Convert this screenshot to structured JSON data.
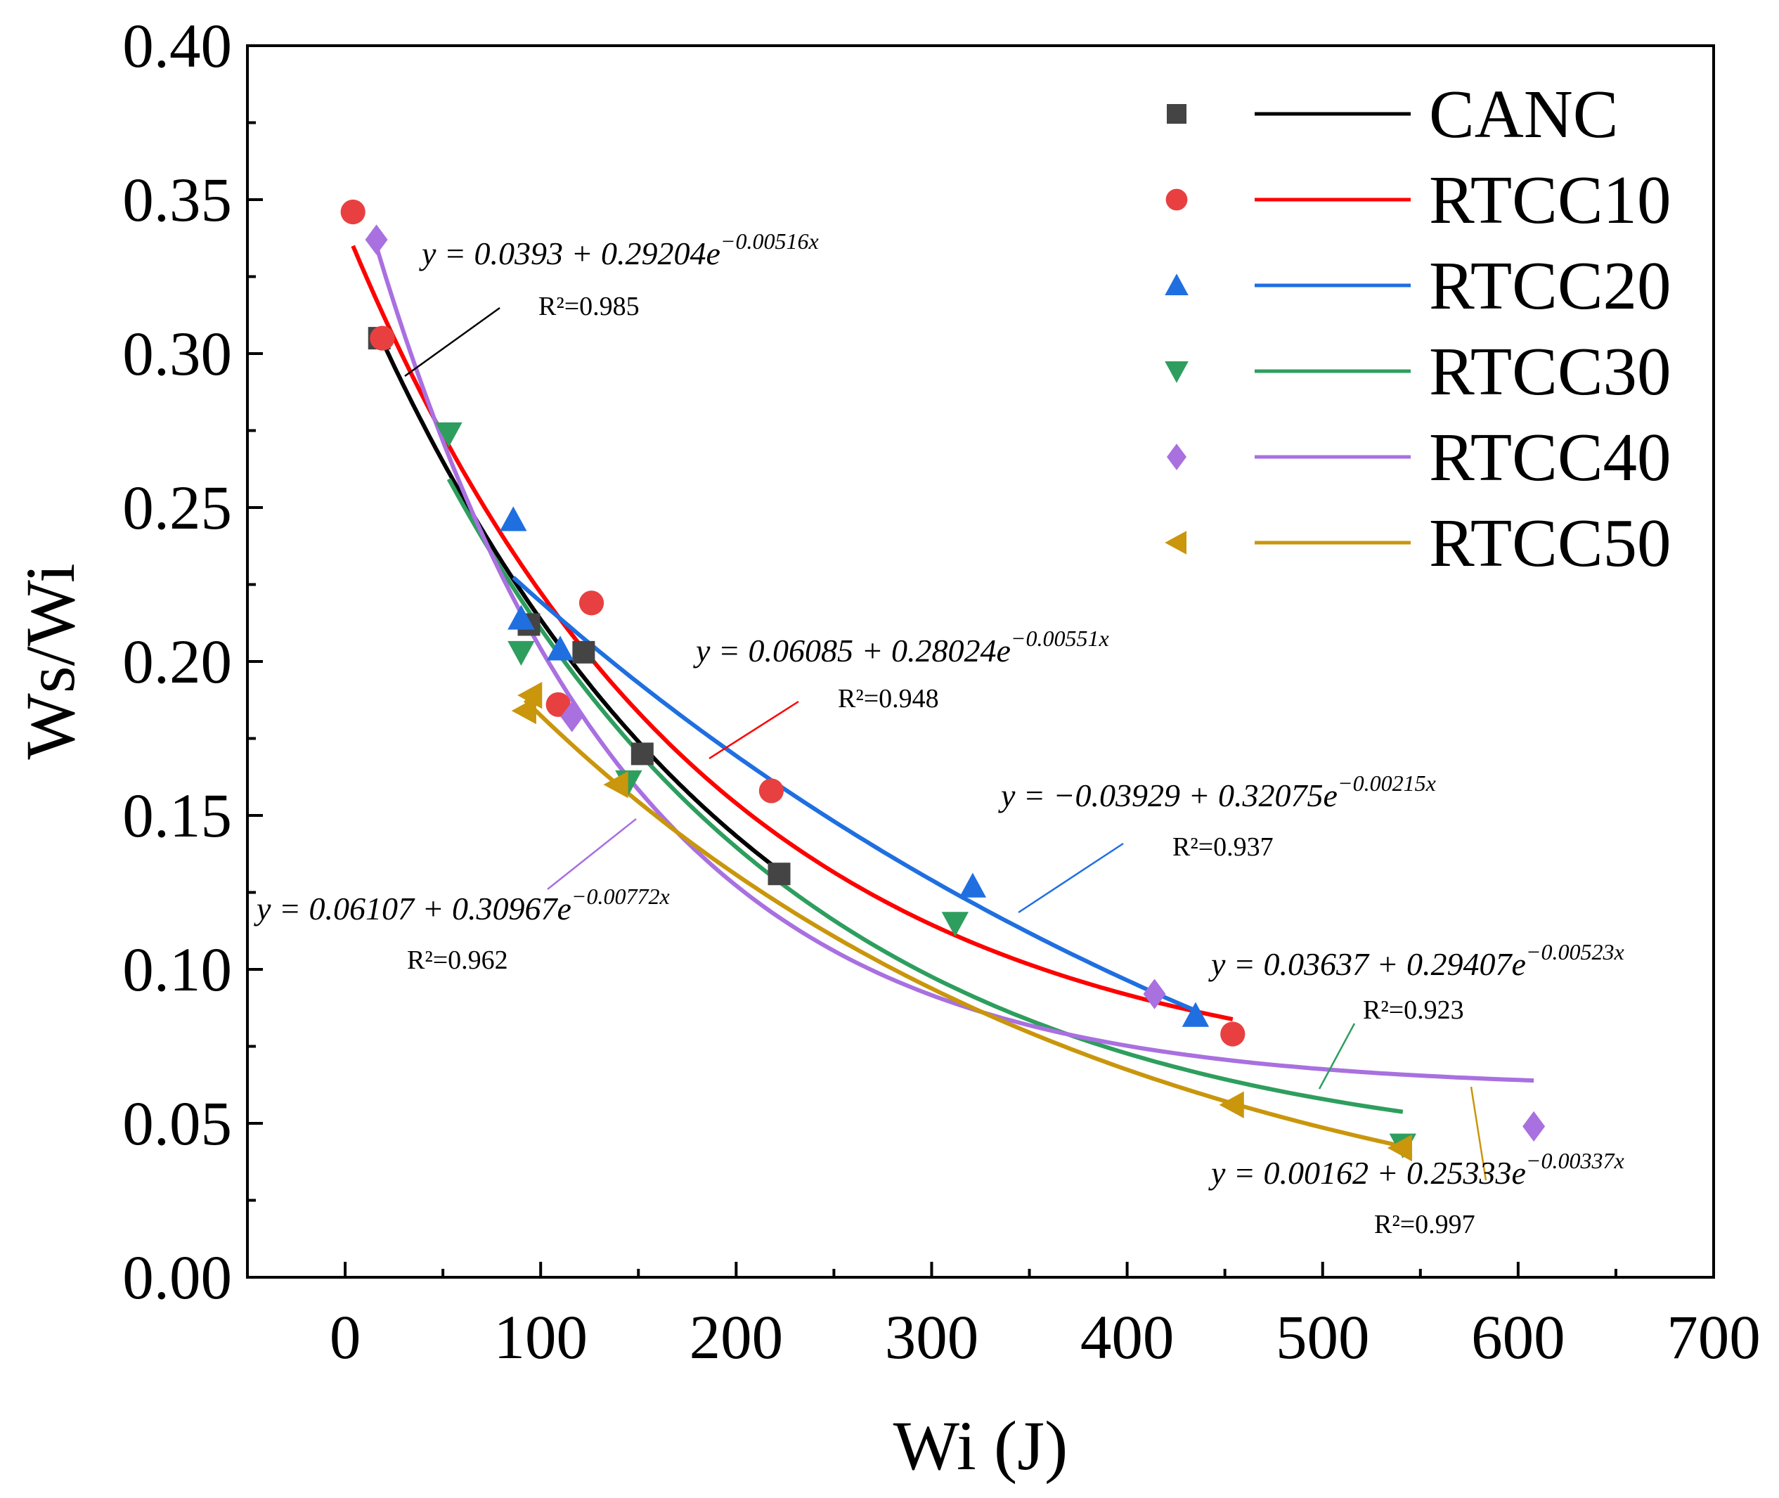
{
  "chart_data": {
    "type": "scatter",
    "title": "",
    "xlabel": "Wi (J)",
    "ylabel": "Ws/Wi",
    "xlim": [
      -50,
      700
    ],
    "ylim": [
      0,
      0.4
    ],
    "xticks": [
      "0",
      "100",
      "200",
      "300",
      "400",
      "500",
      "600",
      "700"
    ],
    "xtick_values": [
      0,
      100,
      200,
      300,
      400,
      500,
      600,
      700
    ],
    "yticks": [
      "0.00",
      "0.05",
      "0.10",
      "0.15",
      "0.20",
      "0.25",
      "0.30",
      "0.35",
      "0.40"
    ],
    "ytick_values": [
      0,
      0.05,
      0.1,
      0.15,
      0.2,
      0.25,
      0.3,
      0.35,
      0.4
    ],
    "grid": false,
    "legend_position": "top-right",
    "series": [
      {
        "name": "CANC",
        "color": "#444444",
        "line_color": "#000000",
        "marker": "square",
        "x": [
          17.5,
          94,
          122,
          152,
          222
        ],
        "y": [
          0.305,
          0.212,
          0.203,
          0.17,
          0.131
        ],
        "fit": {
          "a": 0.0393,
          "b": 0.29204,
          "k": -0.00516,
          "range": [
            17.5,
            222
          ]
        },
        "equation": "y = 0.0393 + 0.29204e",
        "exponent": "−0.00516x",
        "r2": "R²=0.985"
      },
      {
        "name": "RTCC10",
        "color": "#e84040",
        "line_color": "#ff0000",
        "marker": "circle",
        "x": [
          4,
          19,
          109,
          126,
          218,
          454
        ],
        "y": [
          0.346,
          0.305,
          0.186,
          0.219,
          0.158,
          0.079
        ],
        "fit": {
          "a": 0.06085,
          "b": 0.28024,
          "k": -0.00551,
          "range": [
            4,
            454
          ]
        },
        "equation": "y = 0.06085 + 0.28024e",
        "exponent": "−0.00551x",
        "r2": "R²=0.948"
      },
      {
        "name": "RTCC20",
        "color": "#1f6fe0",
        "line_color": "#1f6fe0",
        "marker": "triangle-up",
        "x": [
          86,
          90,
          110,
          321,
          435
        ],
        "y": [
          0.246,
          0.214,
          0.204,
          0.127,
          0.085
        ],
        "fit": {
          "a": -0.03929,
          "b": 0.32075,
          "k": -0.00215,
          "range": [
            86,
            435
          ]
        },
        "equation": "y = −0.03929 + 0.32075e",
        "exponent": "−0.00215x",
        "r2": "R²=0.937"
      },
      {
        "name": "RTCC30",
        "color": "#2e9e5e",
        "line_color": "#2e9e5e",
        "marker": "triangle-down",
        "x": [
          53,
          90,
          145,
          312,
          541
        ],
        "y": [
          0.274,
          0.203,
          0.161,
          0.115,
          0.043
        ],
        "fit": {
          "a": 0.03637,
          "b": 0.29407,
          "k": -0.00523,
          "range": [
            53,
            541
          ]
        },
        "equation": "y = 0.03637 + 0.29407e",
        "exponent": "−0.00523x",
        "r2": "R²=0.923"
      },
      {
        "name": "RTCC40",
        "color": "#a970e0",
        "line_color": "#a970e0",
        "marker": "diamond",
        "x": [
          16,
          116,
          414,
          608
        ],
        "y": [
          0.337,
          0.182,
          0.092,
          0.049
        ],
        "fit": {
          "a": 0.06107,
          "b": 0.30967,
          "k": -0.00772,
          "range": [
            16,
            608
          ]
        },
        "equation": "y = 0.06107 + 0.30967e",
        "exponent": "−0.00772x",
        "r2": "R²=0.962"
      },
      {
        "name": "RTCC50",
        "color": "#c9960c",
        "line_color": "#c9960c",
        "marker": "triangle-left",
        "x": [
          92,
          95,
          139,
          454,
          540
        ],
        "y": [
          0.184,
          0.189,
          0.16,
          0.056,
          0.042
        ],
        "fit": {
          "a": 0.00162,
          "b": 0.25333,
          "k": -0.00337,
          "range": [
            92,
            540
          ]
        },
        "equation": "y = 0.00162 + 0.25333e",
        "exponent": "−0.00337x",
        "r2": "R²=0.997"
      }
    ]
  }
}
